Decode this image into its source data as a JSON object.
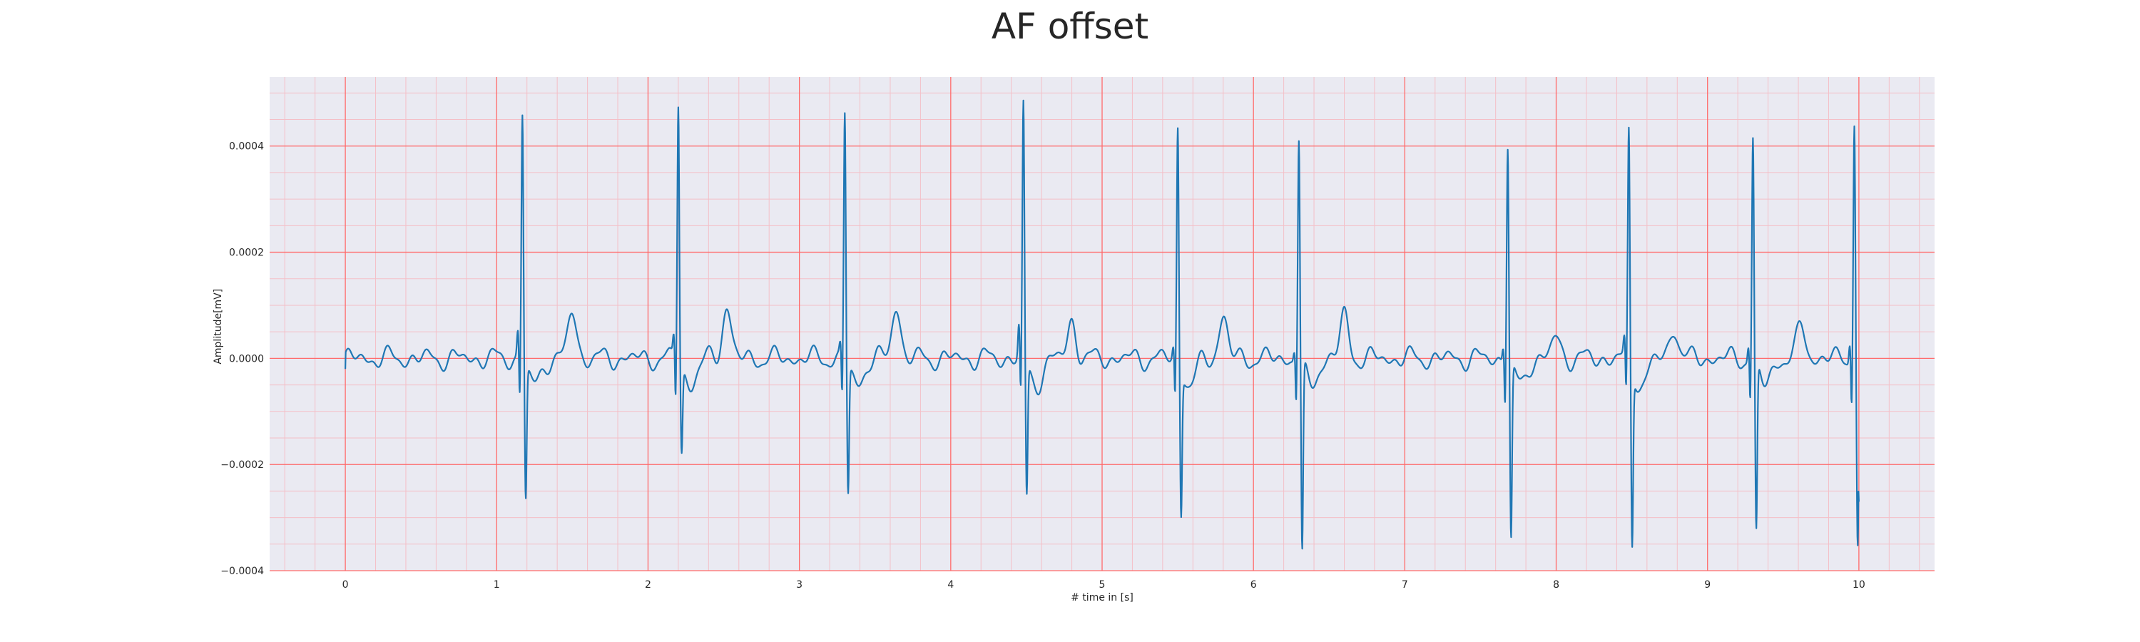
{
  "chart_data": {
    "type": "line",
    "title": "AF offset",
    "xlabel": "# time in [s]",
    "ylabel": "Amplitude[mV]",
    "xlim": [
      -0.5,
      10.5
    ],
    "ylim": [
      -0.0004,
      0.00053
    ],
    "x_ticks": [
      0,
      1,
      2,
      3,
      4,
      5,
      6,
      7,
      8,
      9,
      10
    ],
    "y_ticks": [
      -0.0004,
      -0.0002,
      0.0,
      0.0002,
      0.0004
    ],
    "x_tick_labels": [
      "0",
      "1",
      "2",
      "3",
      "4",
      "5",
      "6",
      "7",
      "8",
      "9",
      "10"
    ],
    "y_tick_labels": [
      "−0.0004",
      "−0.0002",
      "0.0000",
      "0.0002",
      "0.0004"
    ],
    "grid": true,
    "minor_grid": true,
    "background_color": "#eaeaf2",
    "major_grid_color": "#ff6a6a",
    "minor_grid_color": "#f4bfc7",
    "series": [
      {
        "color": "#1f77b4",
        "beats": [
          {
            "t": 1.17,
            "peak": 0.00047,
            "trough": -0.00025,
            "pre": 5e-05,
            "wave_t": 1.5,
            "wave_h": 9e-05
          },
          {
            "t": 2.2,
            "peak": 0.00049,
            "trough": -0.00016,
            "pre": 4e-05,
            "wave_t": 2.52,
            "wave_h": 0.0001
          },
          {
            "t": 3.3,
            "peak": 0.00047,
            "trough": -0.00024,
            "pre": 2e-05,
            "wave_t": 3.64,
            "wave_h": 0.0001
          },
          {
            "t": 4.48,
            "peak": 0.00048,
            "trough": -0.00025,
            "pre": 6e-05,
            "wave_t": 4.8,
            "wave_h": 7e-05
          },
          {
            "t": 5.5,
            "peak": 0.00044,
            "trough": -0.00027,
            "pre": 2e-05,
            "wave_t": 5.8,
            "wave_h": 8e-05
          },
          {
            "t": 6.3,
            "peak": 0.00042,
            "trough": -0.00036,
            "pre": 2e-05,
            "wave_t": 6.6,
            "wave_h": 8e-05
          },
          {
            "t": 7.68,
            "peak": 0.00041,
            "trough": -0.00033,
            "pre": 3e-05,
            "wave_t": 8.0,
            "wave_h": 4e-05
          },
          {
            "t": 8.48,
            "peak": 0.00043,
            "trough": -0.00033,
            "pre": 3e-05,
            "wave_t": 8.78,
            "wave_h": 6e-05
          },
          {
            "t": 9.3,
            "peak": 0.00042,
            "trough": -0.00032,
            "pre": 3e-05,
            "wave_t": 9.62,
            "wave_h": 6e-05
          },
          {
            "t": 9.97,
            "peak": 0.00046,
            "trough": -0.00034,
            "pre": 4e-05,
            "wave_t": 10.3,
            "wave_h": 0.0
          }
        ],
        "x_start": 0.0,
        "x_end": 10.0,
        "start_value": -2e-05,
        "end_value": -0.00027
      }
    ]
  }
}
